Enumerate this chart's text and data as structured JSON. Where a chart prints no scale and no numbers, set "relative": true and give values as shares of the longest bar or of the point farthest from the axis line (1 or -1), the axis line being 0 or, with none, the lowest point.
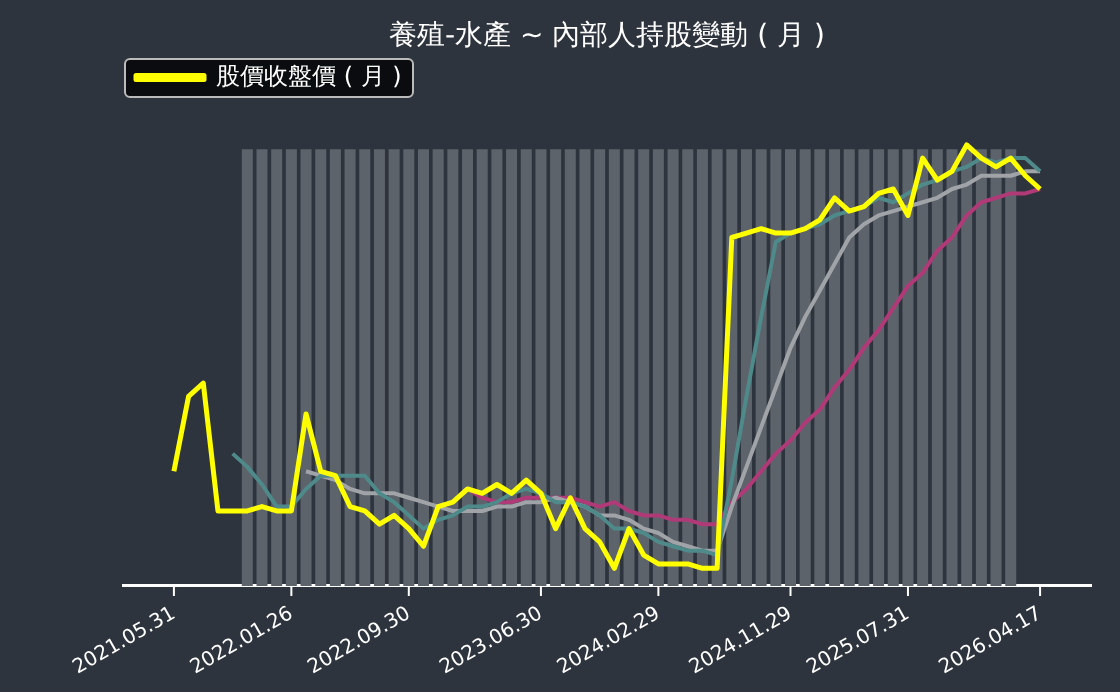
{
  "chart_data": {
    "type": "line",
    "title": "養殖-水產 ~ 內部人持股變動 ( 月 )",
    "relative": true,
    "legend": "top left",
    "grid": false,
    "marker": "none",
    "categories": [
      "2021.05.31",
      null,
      null,
      null,
      null,
      null,
      null,
      null,
      "2022.01.26",
      null,
      null,
      null,
      null,
      null,
      null,
      null,
      "2022.09.30",
      null,
      null,
      null,
      null,
      null,
      null,
      null,
      null,
      "2023.06.30",
      null,
      null,
      null,
      null,
      null,
      null,
      null,
      "2024.02.29",
      null,
      null,
      null,
      null,
      null,
      null,
      null,
      null,
      "2024.11.29",
      null,
      null,
      null,
      null,
      null,
      null,
      null,
      "2025.07.31",
      null,
      null,
      null,
      null,
      null,
      null,
      null,
      null,
      "2026.04.17"
    ],
    "series": [
      {
        "type": "bar",
        "color": "#5d636b",
        "values": [
          null,
          null,
          null,
          null,
          null,
          0.99,
          0.99,
          0.99,
          0.99,
          0.99,
          0.99,
          0.99,
          0.99,
          0.99,
          0.99,
          0.99,
          0.99,
          0.99,
          0.99,
          0.99,
          0.99,
          0.99,
          0.99,
          0.99,
          0.99,
          0.99,
          0.99,
          0.99,
          0.99,
          0.99,
          0.99,
          0.99,
          0.99,
          0.99,
          0.99,
          0.99,
          0.99,
          0.99,
          0.99,
          0.99,
          0.99,
          0.99,
          0.99,
          0.99,
          0.99,
          0.99,
          0.99,
          0.99,
          0.99,
          0.99,
          0.99,
          0.99,
          0.99,
          0.99,
          0.99,
          0.99,
          0.99,
          0.99,
          null,
          null
        ]
      },
      {
        "color": "#4f8a8b",
        "values": [
          null,
          null,
          null,
          null,
          0.3,
          0.27,
          0.23,
          0.18,
          0.18,
          0.22,
          0.25,
          0.25,
          0.25,
          0.25,
          0.21,
          0.19,
          0.16,
          0.13,
          0.15,
          0.16,
          0.18,
          0.18,
          0.19,
          0.21,
          0.22,
          0.21,
          0.19,
          0.19,
          0.18,
          0.16,
          0.13,
          0.13,
          0.12,
          0.1,
          0.09,
          0.08,
          0.08,
          0.07,
          0.24,
          0.43,
          0.61,
          0.78,
          0.8,
          0.81,
          0.82,
          0.84,
          0.85,
          0.86,
          0.88,
          0.87,
          0.89,
          0.91,
          0.92,
          0.94,
          0.95,
          0.97,
          0.96,
          0.97,
          0.97,
          0.94
        ]
      },
      {
        "color": "#a0a4a8",
        "values": [
          null,
          null,
          null,
          null,
          null,
          null,
          null,
          null,
          null,
          0.26,
          0.25,
          0.24,
          0.22,
          0.21,
          0.21,
          0.21,
          0.2,
          0.19,
          0.18,
          0.17,
          0.17,
          0.17,
          0.18,
          0.18,
          0.19,
          0.19,
          0.2,
          0.19,
          0.18,
          0.16,
          0.16,
          0.15,
          0.13,
          0.12,
          0.1,
          0.09,
          0.08,
          0.08,
          0.18,
          0.27,
          0.36,
          0.45,
          0.54,
          0.61,
          0.67,
          0.73,
          0.79,
          0.82,
          0.84,
          0.85,
          0.86,
          0.87,
          0.88,
          0.9,
          0.91,
          0.93,
          0.93,
          0.93,
          0.94,
          0.94
        ]
      },
      {
        "color": "#b03a77",
        "values": [
          null,
          null,
          null,
          null,
          null,
          null,
          null,
          null,
          null,
          null,
          null,
          null,
          null,
          null,
          null,
          null,
          null,
          null,
          null,
          null,
          0.22,
          0.2,
          0.19,
          0.19,
          0.2,
          0.2,
          0.2,
          0.2,
          0.19,
          0.18,
          0.19,
          0.17,
          0.16,
          0.16,
          0.15,
          0.15,
          0.14,
          0.14,
          0.19,
          0.22,
          0.26,
          0.3,
          0.33,
          0.37,
          0.4,
          0.45,
          0.49,
          0.54,
          0.58,
          0.63,
          0.68,
          0.71,
          0.76,
          0.79,
          0.84,
          0.87,
          0.88,
          0.89,
          0.89,
          0.9
        ]
      },
      {
        "name": "股價收盤價 ( 月 )",
        "color": "#ffff00",
        "values": [
          0.26,
          0.43,
          0.46,
          0.17,
          0.17,
          0.17,
          0.18,
          0.17,
          0.17,
          0.39,
          0.26,
          0.25,
          0.18,
          0.17,
          0.14,
          0.16,
          0.13,
          0.09,
          0.18,
          0.19,
          0.22,
          0.21,
          0.23,
          0.21,
          0.24,
          0.21,
          0.13,
          0.2,
          0.13,
          0.1,
          0.04,
          0.13,
          0.07,
          0.05,
          0.05,
          0.05,
          0.04,
          0.04,
          0.79,
          0.8,
          0.81,
          0.8,
          0.8,
          0.81,
          0.83,
          0.88,
          0.85,
          0.86,
          0.89,
          0.9,
          0.84,
          0.97,
          0.92,
          0.94,
          1,
          0.97,
          0.95,
          0.97,
          0.93,
          0.9
        ]
      }
    ]
  }
}
